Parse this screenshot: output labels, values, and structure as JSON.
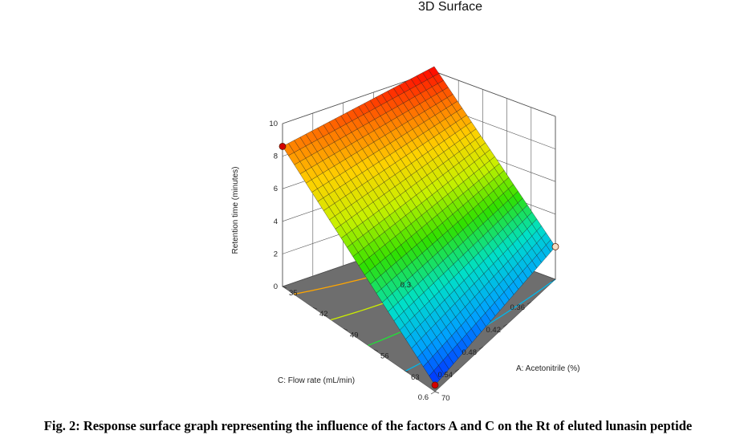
{
  "chart_data": {
    "type": "surface3d",
    "title": "3D Surface",
    "zlabel": "Retention time (minutes)",
    "xlabel": "A: Acetonitrile (%)",
    "ylabel": "C: Flow rate (mL/min)",
    "x_ticks": [
      "35",
      "42",
      "49",
      "56",
      "63",
      "70"
    ],
    "y_ticks": [
      "0.3",
      "0.36",
      "0.42",
      "0.48",
      "0.54",
      "0.6"
    ],
    "z_ticks": [
      "0",
      "2",
      "4",
      "6",
      "8",
      "10"
    ],
    "xlim": [
      35,
      70
    ],
    "ylim": [
      0.3,
      0.6
    ],
    "zlim": [
      0,
      10
    ],
    "surface_corners": [
      {
        "acetonitrile": 35,
        "flow_rate": 0.3,
        "retention_time": 10.3
      },
      {
        "acetonitrile": 35,
        "flow_rate": 0.6,
        "retention_time": 8.6
      },
      {
        "acetonitrile": 70,
        "flow_rate": 0.3,
        "retention_time": 2.0
      },
      {
        "acetonitrile": 70,
        "flow_rate": 0.6,
        "retention_time": 0.4
      }
    ],
    "design_points": [
      {
        "acetonitrile": 35,
        "flow_rate": 0.6,
        "retention_time": 8.6,
        "color": "#d40000"
      },
      {
        "acetonitrile": 70,
        "flow_rate": 0.3,
        "retention_time": 2.0,
        "color": "#f4ddc4"
      },
      {
        "acetonitrile": 70,
        "flow_rate": 0.6,
        "retention_time": 0.4,
        "color": "#d40000"
      }
    ],
    "colormap": [
      "#0000ff",
      "#00a0ff",
      "#00e0c8",
      "#30e000",
      "#c8f000",
      "#ffd000",
      "#ff7000",
      "#ff0000"
    ],
    "floor_color": "#6e6e6e"
  },
  "caption": "Fig. 2: Response surface graph representing the influence of the factors A and C on the Rt of eluted lunasin peptide"
}
